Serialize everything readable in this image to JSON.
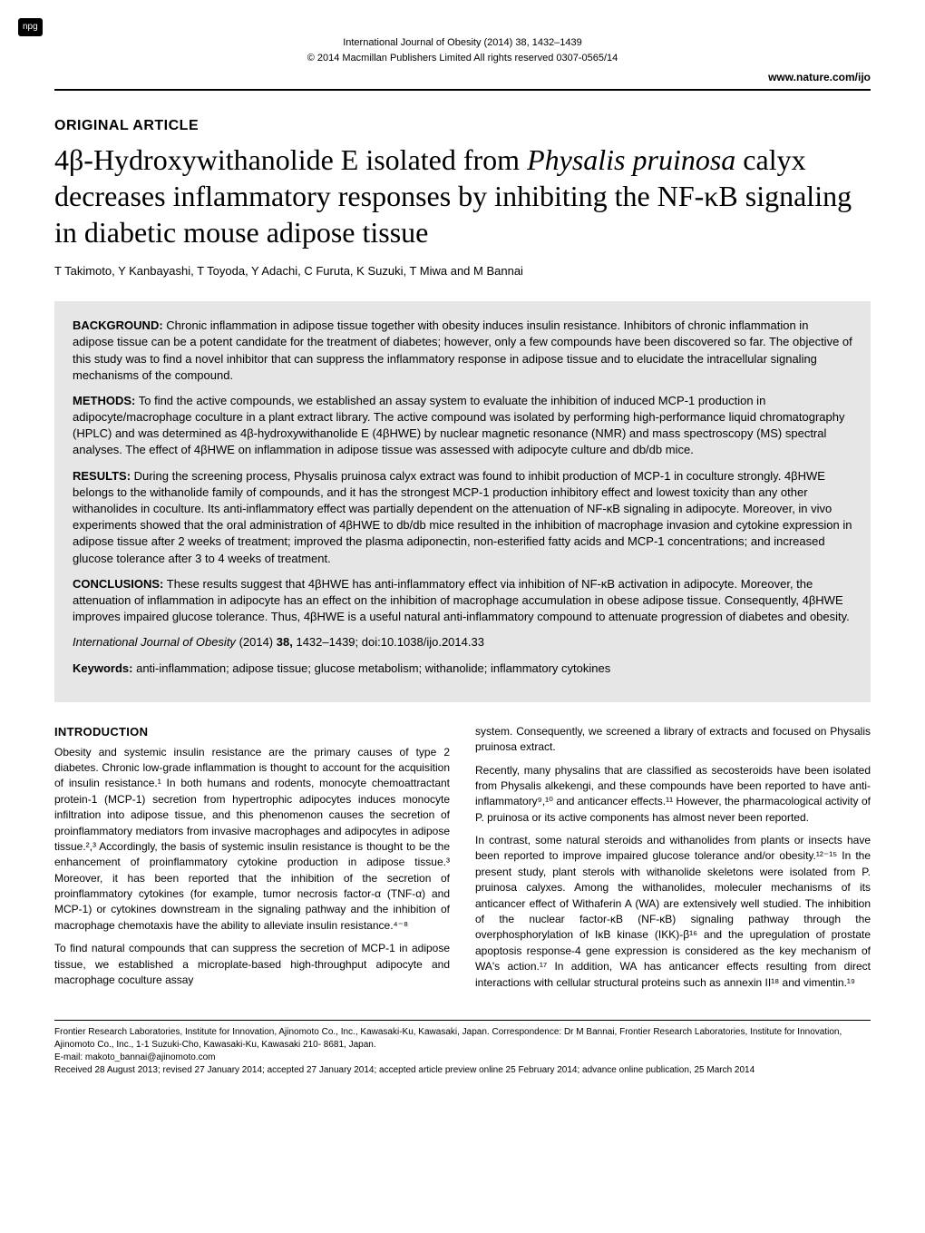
{
  "npg": "npg",
  "header": {
    "journal_ref": "International Journal of Obesity (2014) 38, 1432–1439",
    "copyright": "© 2014 Macmillan Publishers Limited   All rights reserved 0307-0565/14",
    "url": "www.nature.com/ijo"
  },
  "article_type": "ORIGINAL ARTICLE",
  "title": "4β-Hydroxywithanolide E isolated from Physalis pruinosa calyx decreases inflammatory responses by inhibiting the NF-κB signaling in diabetic mouse adipose tissue",
  "authors": "T Takimoto, Y Kanbayashi, T Toyoda, Y Adachi, C Furuta, K Suzuki, T Miwa and M Bannai",
  "abstract": {
    "background_label": "BACKGROUND:",
    "background": "Chronic inflammation in adipose tissue together with obesity induces insulin resistance. Inhibitors of chronic inflammation in adipose tissue can be a potent candidate for the treatment of diabetes; however, only a few compounds have been discovered so far. The objective of this study was to find a novel inhibitor that can suppress the inflammatory response in adipose tissue and to elucidate the intracellular signaling mechanisms of the compound.",
    "methods_label": "METHODS:",
    "methods": "To find the active compounds, we established an assay system to evaluate the inhibition of induced MCP-1 production in adipocyte/macrophage coculture in a plant extract library. The active compound was isolated by performing high-performance liquid chromatography (HPLC) and was determined as 4β-hydroxywithanolide E (4βHWE) by nuclear magnetic resonance (NMR) and mass spectroscopy (MS) spectral analyses. The effect of 4βHWE on inflammation in adipose tissue was assessed with adipocyte culture and db/db mice.",
    "results_label": "RESULTS:",
    "results": "During the screening process, Physalis pruinosa calyx extract was found to inhibit production of MCP-1 in coculture strongly. 4βHWE belongs to the withanolide family of compounds, and it has the strongest MCP-1 production inhibitory effect and lowest toxicity than any other withanolides in coculture. Its anti-inflammatory effect was partially dependent on the attenuation of NF-κB signaling in adipocyte. Moreover, in vivo experiments showed that the oral administration of 4βHWE to db/db mice resulted in the inhibition of macrophage invasion and cytokine expression in adipose tissue after 2 weeks of treatment; improved the plasma adiponectin, non-esterified fatty acids and MCP-1 concentrations; and increased glucose tolerance after 3 to 4 weeks of treatment.",
    "conclusions_label": "CONCLUSIONS:",
    "conclusions": "These results suggest that 4βHWE has anti-inflammatory effect via inhibition of NF-κB activation in adipocyte. Moreover, the attenuation of inflammation in adipocyte has an effect on the inhibition of macrophage accumulation in obese adipose tissue. Consequently, 4βHWE improves impaired glucose tolerance. Thus, 4βHWE is a useful natural anti-inflammatory compound to attenuate progression of diabetes and obesity.",
    "citation_journal": "International Journal of Obesity",
    "citation_year": "(2014)",
    "citation_vol": "38,",
    "citation_pages": "1432–1439; doi:10.1038/ijo.2014.33",
    "keywords_label": "Keywords:",
    "keywords": "anti-inflammation; adipose tissue; glucose metabolism; withanolide; inflammatory cytokines"
  },
  "body": {
    "intro_heading": "INTRODUCTION",
    "left": {
      "p1": "Obesity and systemic insulin resistance are the primary causes of type 2 diabetes. Chronic low-grade inflammation is thought to account for the acquisition of insulin resistance.¹ In both humans and rodents, monocyte chemoattractant protein-1 (MCP-1) secretion from hypertrophic adipocytes induces monocyte infiltration into adipose tissue, and this phenomenon causes the secretion of proinflammatory mediators from invasive macrophages and adipocytes in adipose tissue.²,³ Accordingly, the basis of systemic insulin resistance is thought to be the enhancement of proinflammatory cytokine production in adipose tissue.³ Moreover, it has been reported that the inhibition of the secretion of proinflammatory cytokines (for example, tumor necrosis factor-α (TNF-α) and MCP-1) or cytokines downstream in the signaling pathway and the inhibition of macrophage chemotaxis have the ability to alleviate insulin resistance.⁴⁻⁸",
      "p2": "To find natural compounds that can suppress the secretion of MCP-1 in adipose tissue, we established a microplate-based high-throughput adipocyte and macrophage coculture assay"
    },
    "right": {
      "p1": "system. Consequently, we screened a library of extracts and focused on Physalis pruinosa extract.",
      "p2": "Recently, many physalins that are classified as secosteroids have been isolated from Physalis alkekengi, and these compounds have been reported to have anti-inflammatory⁹,¹⁰ and anticancer effects.¹¹ However, the pharmacological activity of P. pruinosa or its active components has almost never been reported.",
      "p3": "In contrast, some natural steroids and withanolides from plants or insects have been reported to improve impaired glucose tolerance and/or obesity.¹²⁻¹⁵ In the present study, plant sterols with withanolide skeletons were isolated from P. pruinosa calyxes. Among the withanolides, moleculer mechanisms of its anticancer effect of Withaferin A (WA) are extensively well studied. The inhibition of the nuclear factor-κB (NF-κB) signaling pathway through the overphosphorylation of IκB kinase (IKK)-β¹⁶ and the upregulation of prostate apoptosis response-4 gene expression is considered as the key mechanism of WA's action.¹⁷ In addition, WA has anticancer effects resulting from direct interactions with cellular structural proteins such as annexin II¹⁸ and vimentin.¹⁹"
    }
  },
  "footer": {
    "affiliation": "Frontier Research Laboratories, Institute for Innovation, Ajinomoto Co., Inc., Kawasaki-Ku, Kawasaki, Japan. Correspondence: Dr M Bannai, Frontier Research Laboratories, Institute for Innovation, Ajinomoto Co., Inc., 1-1 Suzuki-Cho, Kawasaki-Ku, Kawasaki 210- 8681, Japan.",
    "email": "E-mail: makoto_bannai@ajinomoto.com",
    "dates": "Received 28 August 2013; revised 27 January 2014; accepted 27 January 2014; accepted article preview online 25 February 2014; advance online publication, 25 March 2014"
  },
  "style": {
    "background_color": "#ffffff",
    "abstract_bg": "#e6e6e6",
    "text_color": "#000000",
    "title_fontsize": 32,
    "body_fontsize": 12
  }
}
